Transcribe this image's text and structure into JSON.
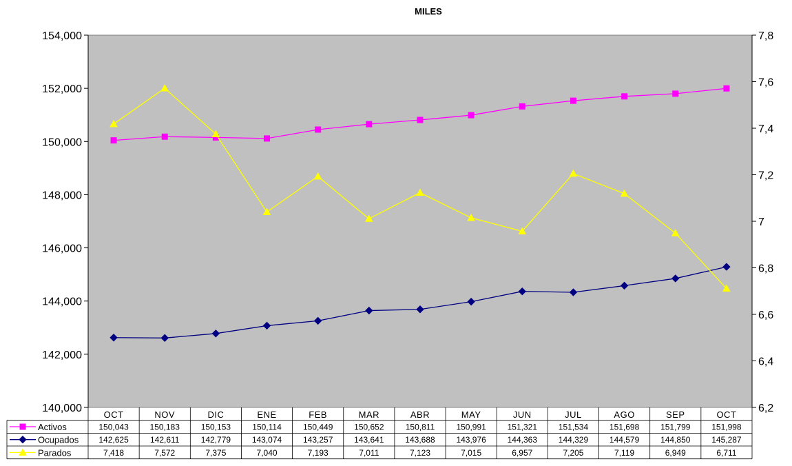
{
  "chart_data": {
    "type": "line",
    "title": "MILES",
    "categories": [
      "OCT",
      "NOV",
      "DIC",
      "ENE",
      "FEB",
      "MAR",
      "ABR",
      "MAY",
      "JUN",
      "JUL",
      "AGO",
      "SEP",
      "OCT"
    ],
    "y_left": {
      "ylim": [
        140000,
        154000
      ],
      "ticks": [
        140000,
        142000,
        144000,
        146000,
        148000,
        150000,
        152000,
        154000
      ],
      "tick_labels": [
        "140,000",
        "142,000",
        "144,000",
        "146,000",
        "148,000",
        "150,000",
        "152,000",
        "154,000"
      ]
    },
    "y_right": {
      "ylim": [
        6.2,
        7.8
      ],
      "ticks": [
        6.2,
        6.4,
        6.6,
        6.8,
        7.0,
        7.2,
        7.4,
        7.6,
        7.8
      ],
      "tick_labels": [
        "6,2",
        "6,4",
        "6,6",
        "6,8",
        "7",
        "7,2",
        "7,4",
        "7,6",
        "7,8"
      ]
    },
    "series": [
      {
        "name": "Activos",
        "axis": "left",
        "color": "#ff00ff",
        "marker": "square",
        "values": [
          150043,
          150183,
          150153,
          150114,
          150449,
          150652,
          150811,
          150991,
          151321,
          151534,
          151698,
          151799,
          151998
        ],
        "labels": [
          "150,043",
          "150,183",
          "150,153",
          "150,114",
          "150,449",
          "150,652",
          "150,811",
          "150,991",
          "151,321",
          "151,534",
          "151,698",
          "151,799",
          "151,998"
        ]
      },
      {
        "name": "Ocupados",
        "axis": "left",
        "color": "#000080",
        "marker": "diamond",
        "values": [
          142625,
          142611,
          142779,
          143074,
          143257,
          143641,
          143688,
          143976,
          144363,
          144329,
          144579,
          144850,
          145287
        ],
        "labels": [
          "142,625",
          "142,611",
          "142,779",
          "143,074",
          "143,257",
          "143,641",
          "143,688",
          "143,976",
          "144,363",
          "144,329",
          "144,579",
          "144,850",
          "145,287"
        ]
      },
      {
        "name": "Parados",
        "axis": "right",
        "color": "#ffff00",
        "marker": "triangle",
        "values": [
          7.418,
          7.572,
          7.375,
          7.04,
          7.193,
          7.011,
          7.123,
          7.015,
          6.957,
          7.205,
          7.119,
          6.949,
          6.711
        ],
        "labels": [
          "7,418",
          "7,572",
          "7,375",
          "7,040",
          "7,193",
          "7,011",
          "7,123",
          "7,015",
          "6,957",
          "7,205",
          "7,119",
          "6,949",
          "6,711"
        ]
      }
    ],
    "plot_background": "#c0c0c0",
    "grid": false,
    "legend": "data-table-below"
  }
}
